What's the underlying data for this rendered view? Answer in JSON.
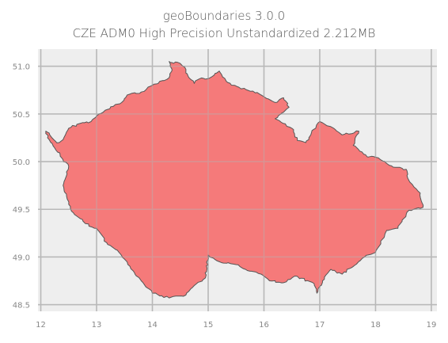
{
  "title": "geoBoundaries 3.0.0",
  "subtitle": "CZE ADM0 High Precision Unstandardized 2.212MB",
  "colors": {
    "background": "#eeeeee",
    "grid": "#b8b8b8",
    "fill": "#f47373",
    "edge": "#555555"
  },
  "chart_data": {
    "type": "map",
    "title": "geoBoundaries 3.0.0",
    "subtitle": "CZE ADM0 High Precision Unstandardized 2.212MB",
    "xlim": [
      11.95,
      19.1
    ],
    "ylim": [
      48.43,
      51.18
    ],
    "grid": true,
    "x_ticks": [
      12,
      13,
      14,
      15,
      16,
      17,
      18,
      19
    ],
    "y_ticks": [
      48.5,
      49.0,
      49.5,
      50.0,
      50.5,
      51.0
    ],
    "x_tick_labels": [
      "12",
      "13",
      "14",
      "15",
      "16",
      "17",
      "18",
      "19"
    ],
    "y_tick_labels": [
      "48.5",
      "49.0",
      "49.5",
      "50.0",
      "50.5",
      "51.0"
    ],
    "boundary": [
      [
        12.09,
        50.32
      ],
      [
        12.15,
        50.3
      ],
      [
        12.2,
        50.25
      ],
      [
        12.27,
        50.21
      ],
      [
        12.33,
        50.2
      ],
      [
        12.4,
        50.23
      ],
      [
        12.5,
        50.35
      ],
      [
        12.7,
        50.4
      ],
      [
        12.9,
        50.42
      ],
      [
        13.05,
        50.5
      ],
      [
        13.3,
        50.58
      ],
      [
        13.45,
        50.62
      ],
      [
        13.55,
        50.7
      ],
      [
        13.8,
        50.73
      ],
      [
        14.0,
        50.8
      ],
      [
        14.3,
        50.88
      ],
      [
        14.35,
        50.97
      ],
      [
        14.3,
        51.05
      ],
      [
        14.35,
        51.04
      ],
      [
        14.5,
        51.03
      ],
      [
        14.58,
        50.99
      ],
      [
        14.6,
        50.93
      ],
      [
        14.75,
        50.82
      ],
      [
        14.85,
        50.87
      ],
      [
        15.0,
        50.87
      ],
      [
        15.2,
        50.95
      ],
      [
        15.35,
        50.83
      ],
      [
        15.55,
        50.78
      ],
      [
        15.8,
        50.74
      ],
      [
        16.0,
        50.68
      ],
      [
        16.2,
        50.62
      ],
      [
        16.35,
        50.67
      ],
      [
        16.45,
        50.57
      ],
      [
        16.2,
        50.45
      ],
      [
        16.35,
        50.4
      ],
      [
        16.5,
        50.35
      ],
      [
        16.6,
        50.22
      ],
      [
        16.75,
        50.2
      ],
      [
        16.85,
        50.3
      ],
      [
        17.0,
        50.42
      ],
      [
        17.25,
        50.35
      ],
      [
        17.4,
        50.28
      ],
      [
        17.7,
        50.32
      ],
      [
        17.6,
        50.17
      ],
      [
        17.85,
        50.05
      ],
      [
        18.05,
        50.04
      ],
      [
        18.2,
        49.98
      ],
      [
        18.35,
        49.94
      ],
      [
        18.55,
        49.92
      ],
      [
        18.6,
        49.8
      ],
      [
        18.8,
        49.67
      ],
      [
        18.85,
        49.52
      ],
      [
        18.6,
        49.49
      ],
      [
        18.4,
        49.3
      ],
      [
        18.2,
        49.28
      ],
      [
        18.0,
        49.05
      ],
      [
        17.8,
        49.0
      ],
      [
        17.6,
        48.9
      ],
      [
        17.4,
        48.82
      ],
      [
        17.2,
        48.87
      ],
      [
        17.05,
        48.75
      ],
      [
        16.95,
        48.62
      ],
      [
        16.9,
        48.72
      ],
      [
        16.55,
        48.8
      ],
      [
        16.35,
        48.73
      ],
      [
        16.1,
        48.75
      ],
      [
        15.95,
        48.82
      ],
      [
        15.75,
        48.85
      ],
      [
        15.5,
        48.92
      ],
      [
        15.2,
        48.95
      ],
      [
        15.0,
        49.02
      ],
      [
        14.95,
        48.78
      ],
      [
        14.75,
        48.7
      ],
      [
        14.6,
        48.6
      ],
      [
        14.3,
        48.57
      ],
      [
        14.0,
        48.62
      ],
      [
        13.8,
        48.75
      ],
      [
        13.6,
        48.9
      ],
      [
        13.4,
        49.05
      ],
      [
        13.2,
        49.13
      ],
      [
        13.0,
        49.3
      ],
      [
        12.8,
        49.35
      ],
      [
        12.55,
        49.48
      ],
      [
        12.4,
        49.75
      ],
      [
        12.5,
        49.95
      ],
      [
        12.3,
        50.1
      ],
      [
        12.15,
        50.23
      ],
      [
        12.09,
        50.32
      ]
    ]
  }
}
